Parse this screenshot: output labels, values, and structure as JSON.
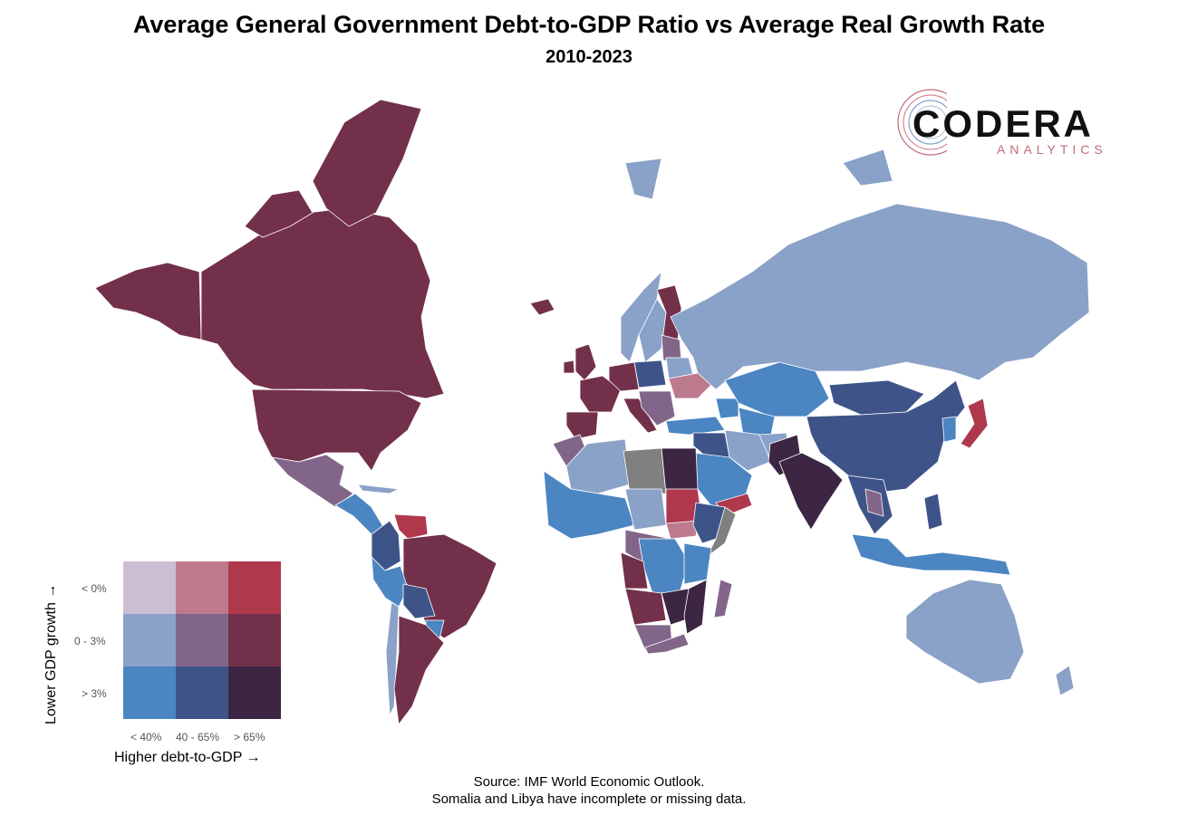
{
  "title": "Average General Government Debt-to-GDP Ratio vs Average Real Growth Rate",
  "subtitle": "2010-2023",
  "logo": {
    "word": "CODERA",
    "sub": "ANALYTICS"
  },
  "legend": {
    "y_title": "Lower GDP growth →",
    "x_title": "Higher debt-to-GDP →",
    "growth_levels": [
      "< 0%",
      "0 - 3%",
      "> 3%"
    ],
    "debt_levels": [
      "< 40%",
      "40 - 65%",
      "> 65%"
    ],
    "colors": [
      [
        "#cbbdd2",
        "#bd7a8d",
        "#b0384d"
      ],
      [
        "#8aa1c8",
        "#82668a",
        "#73304a"
      ],
      [
        "#4b85c2",
        "#3e5489",
        "#3c2643"
      ]
    ],
    "no_data_color": "#808080"
  },
  "source_line1": "Source: IMF World Economic Outlook.",
  "source_line2": "Somalia and Libya have incomplete or missing data."
}
